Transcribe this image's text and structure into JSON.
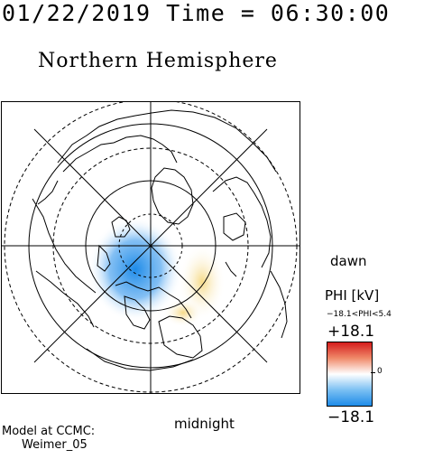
{
  "header": {
    "datetime": "01/22/2019 Time = 06:30:00",
    "title": "Northern Hemisphere"
  },
  "map": {
    "dawn_label": "dawn",
    "midnight_label": "midnight",
    "colors": {
      "land": "#000000",
      "grid": "#000000",
      "negative_potential": "#1e8be8",
      "positive_potential": "#f5d67a"
    }
  },
  "colorbar": {
    "title": "PHI [kV]",
    "range_text": "−18.1<PHI<5.4",
    "max_label": "+18.1",
    "zero_label": "0",
    "min_label": "−18.1",
    "colors": {
      "top": "#d41c1c",
      "middle": "#ffffff",
      "bottom": "#1e8be8"
    }
  },
  "model": {
    "line1": "Model at CCMC:",
    "line2": "Weimer_05"
  }
}
